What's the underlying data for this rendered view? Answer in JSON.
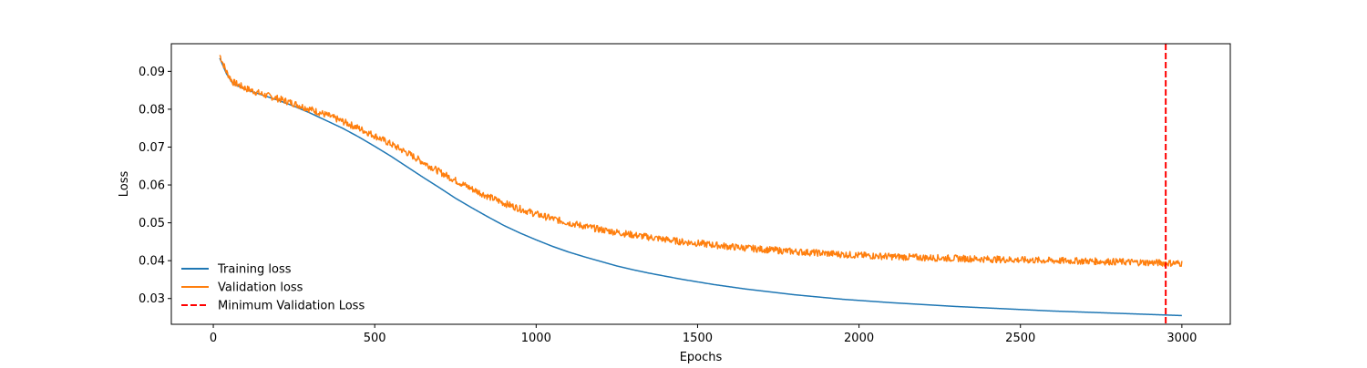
{
  "chart_data": {
    "type": "line",
    "title": "",
    "xlabel": "Epochs",
    "ylabel": "Loss",
    "xlim": [
      -130,
      3150
    ],
    "ylim": [
      0.0232,
      0.0973
    ],
    "xticks": [
      0,
      500,
      1000,
      1500,
      2000,
      2500,
      3000
    ],
    "xtick_labels": [
      "0",
      "500",
      "1000",
      "1500",
      "2000",
      "2500",
      "3000"
    ],
    "yticks": [
      0.03,
      0.04,
      0.05,
      0.06,
      0.07,
      0.08,
      0.09
    ],
    "ytick_labels": [
      "0.03",
      "0.04",
      "0.05",
      "0.06",
      "0.07",
      "0.08",
      "0.09"
    ],
    "grid": false,
    "legend": {
      "placement": "lower-left",
      "frame": false
    },
    "x_start": 20,
    "x_end": 3000,
    "series": [
      {
        "name": "Training loss",
        "color": "#1f77b4",
        "style": "solid",
        "points": [
          [
            20,
            0.0935
          ],
          [
            40,
            0.0895
          ],
          [
            60,
            0.0868
          ],
          [
            100,
            0.0852
          ],
          [
            150,
            0.0838
          ],
          [
            200,
            0.0824
          ],
          [
            250,
            0.0808
          ],
          [
            300,
            0.079
          ],
          [
            350,
            0.077
          ],
          [
            400,
            0.075
          ],
          [
            450,
            0.0727
          ],
          [
            500,
            0.0702
          ],
          [
            550,
            0.0676
          ],
          [
            600,
            0.0648
          ],
          [
            650,
            0.062
          ],
          [
            700,
            0.0593
          ],
          [
            750,
            0.0565
          ],
          [
            800,
            0.054
          ],
          [
            850,
            0.0516
          ],
          [
            900,
            0.0493
          ],
          [
            950,
            0.0473
          ],
          [
            1000,
            0.0455
          ],
          [
            1050,
            0.0438
          ],
          [
            1100,
            0.0423
          ],
          [
            1150,
            0.041
          ],
          [
            1200,
            0.0398
          ],
          [
            1250,
            0.0386
          ],
          [
            1300,
            0.0376
          ],
          [
            1350,
            0.0367
          ],
          [
            1400,
            0.0359
          ],
          [
            1450,
            0.0351
          ],
          [
            1500,
            0.0344
          ],
          [
            1550,
            0.0337
          ],
          [
            1600,
            0.0331
          ],
          [
            1650,
            0.0325
          ],
          [
            1700,
            0.032
          ],
          [
            1750,
            0.0315
          ],
          [
            1800,
            0.031
          ],
          [
            1850,
            0.0306
          ],
          [
            1900,
            0.0302
          ],
          [
            1950,
            0.0298
          ],
          [
            2000,
            0.0295
          ],
          [
            2100,
            0.0289
          ],
          [
            2200,
            0.0284
          ],
          [
            2300,
            0.0279
          ],
          [
            2400,
            0.0275
          ],
          [
            2500,
            0.0271
          ],
          [
            2600,
            0.0267
          ],
          [
            2700,
            0.0264
          ],
          [
            2800,
            0.0261
          ],
          [
            2900,
            0.0258
          ],
          [
            3000,
            0.0255
          ]
        ]
      },
      {
        "name": "Validation loss",
        "color": "#ff7f0e",
        "style": "solid",
        "noise": 0.0009,
        "points": [
          [
            20,
            0.0943
          ],
          [
            40,
            0.09
          ],
          [
            60,
            0.0872
          ],
          [
            100,
            0.0855
          ],
          [
            150,
            0.084
          ],
          [
            200,
            0.0828
          ],
          [
            250,
            0.0815
          ],
          [
            300,
            0.08
          ],
          [
            350,
            0.0785
          ],
          [
            400,
            0.0768
          ],
          [
            450,
            0.075
          ],
          [
            500,
            0.073
          ],
          [
            550,
            0.0708
          ],
          [
            600,
            0.0685
          ],
          [
            650,
            0.066
          ],
          [
            700,
            0.0635
          ],
          [
            750,
            0.0612
          ],
          [
            800,
            0.059
          ],
          [
            850,
            0.057
          ],
          [
            900,
            0.0552
          ],
          [
            950,
            0.0537
          ],
          [
            1000,
            0.0523
          ],
          [
            1050,
            0.0511
          ],
          [
            1100,
            0.05
          ],
          [
            1150,
            0.0491
          ],
          [
            1200,
            0.0482
          ],
          [
            1250,
            0.0475
          ],
          [
            1300,
            0.0468
          ],
          [
            1350,
            0.0462
          ],
          [
            1400,
            0.0456
          ],
          [
            1450,
            0.045
          ],
          [
            1500,
            0.0446
          ],
          [
            1600,
            0.0437
          ],
          [
            1700,
            0.043
          ],
          [
            1800,
            0.0424
          ],
          [
            1900,
            0.0419
          ],
          [
            2000,
            0.0414
          ],
          [
            2100,
            0.0411
          ],
          [
            2200,
            0.0408
          ],
          [
            2300,
            0.0406
          ],
          [
            2400,
            0.0404
          ],
          [
            2500,
            0.0402
          ],
          [
            2600,
            0.04
          ],
          [
            2700,
            0.0399
          ],
          [
            2800,
            0.0397
          ],
          [
            2900,
            0.0395
          ],
          [
            2950,
            0.0394
          ],
          [
            3000,
            0.0393
          ]
        ]
      },
      {
        "name": "Minimum Validation Loss",
        "color": "#ff0000",
        "style": "dashed",
        "x": 2950
      }
    ]
  }
}
